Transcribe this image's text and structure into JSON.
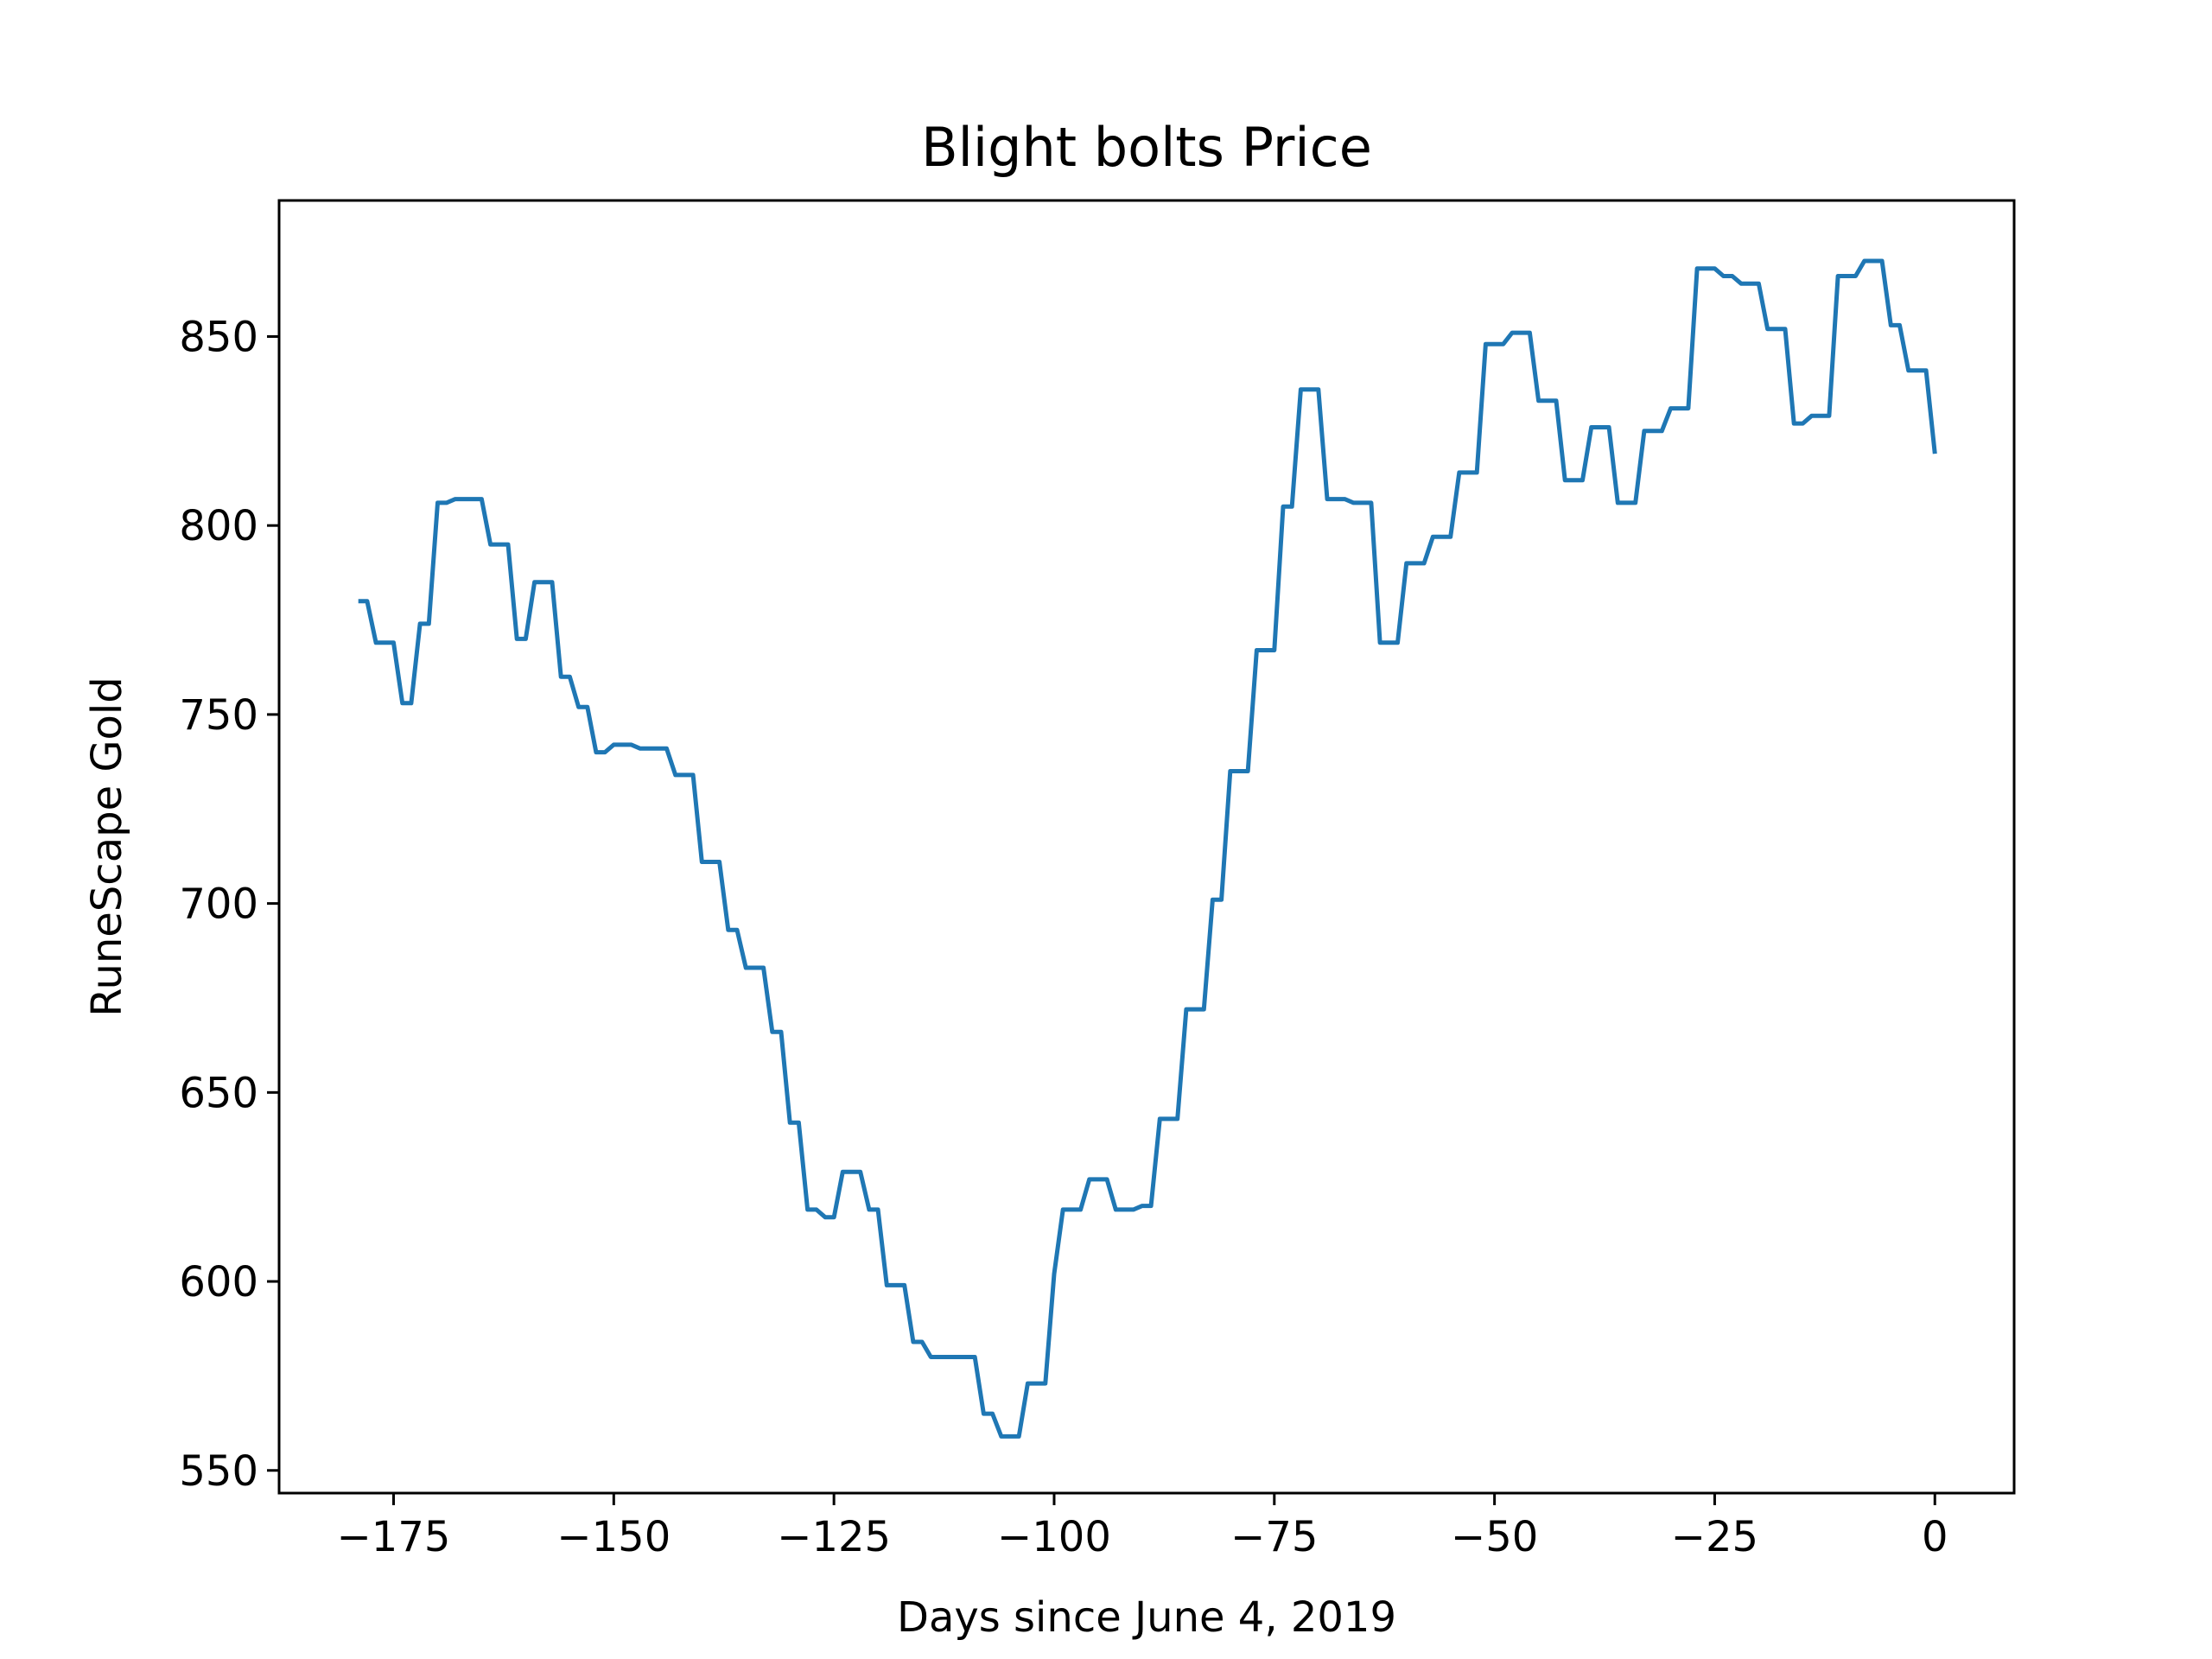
{
  "chart_data": {
    "type": "line",
    "title": "Blight bolts Price",
    "xlabel": "Days since June 4, 2019",
    "ylabel": "RuneScape Gold",
    "xlim": [
      -188,
      9
    ],
    "ylim": [
      544,
      886
    ],
    "xticks": [
      -175,
      -150,
      -125,
      -100,
      -75,
      -50,
      -25,
      0
    ],
    "xtick_labels": [
      "−175",
      "−150",
      "−125",
      "−100",
      "−75",
      "−50",
      "−25",
      "0"
    ],
    "yticks": [
      550,
      600,
      650,
      700,
      750,
      800,
      850
    ],
    "ytick_labels": [
      "550",
      "600",
      "650",
      "700",
      "750",
      "800",
      "850"
    ],
    "grid": false,
    "legend": "none",
    "series": [
      {
        "name": "",
        "color": "#1f77b4",
        "x": [
          -179,
          -178,
          -177,
          -176,
          -175,
          -174,
          -173,
          -172,
          -171,
          -170,
          -169,
          -168,
          -167,
          -166,
          -165,
          -164,
          -163,
          -162,
          -161,
          -160,
          -159,
          -158,
          -157,
          -156,
          -155,
          -154,
          -153,
          -152,
          -151,
          -150,
          -149,
          -148,
          -147,
          -146,
          -145,
          -144,
          -143,
          -142,
          -141,
          -140,
          -139,
          -138,
          -137,
          -136,
          -135,
          -134,
          -133,
          -132,
          -131,
          -130,
          -129,
          -128,
          -127,
          -126,
          -125,
          -124,
          -123,
          -122,
          -121,
          -120,
          -119,
          -118,
          -117,
          -116,
          -115,
          -114,
          -113,
          -112,
          -111,
          -110,
          -109,
          -108,
          -107,
          -106,
          -105,
          -104,
          -103,
          -102,
          -101,
          -100,
          -99,
          -98,
          -97,
          -96,
          -95,
          -94,
          -93,
          -92,
          -91,
          -90,
          -89,
          -88,
          -87,
          -86,
          -85,
          -84,
          -83,
          -82,
          -81,
          -80,
          -79,
          -78,
          -77,
          -76,
          -75,
          -74,
          -73,
          -72,
          -71,
          -70,
          -69,
          -68,
          -67,
          -66,
          -65,
          -64,
          -63,
          -62,
          -61,
          -60,
          -59,
          -58,
          -57,
          -56,
          -55,
          -54,
          -53,
          -52,
          -51,
          -50,
          -49,
          -48,
          -47,
          -46,
          -45,
          -44,
          -43,
          -42,
          -41,
          -40,
          -39,
          -38,
          -37,
          -36,
          -35,
          -34,
          -33,
          -32,
          -31,
          -30,
          -29,
          -28,
          -27,
          -26,
          -25,
          -24,
          -23,
          -22,
          -21,
          -20,
          -19,
          -18,
          -17,
          -16,
          -15,
          -14,
          -13,
          -12,
          -11,
          -10,
          -9,
          -8,
          -7,
          -6,
          -5,
          -4,
          -3,
          -2,
          -1,
          0
        ],
        "y": [
          780,
          780,
          769,
          769,
          769,
          753,
          753,
          774,
          774,
          806,
          806,
          807,
          807,
          807,
          807,
          795,
          795,
          795,
          770,
          770,
          785,
          785,
          785,
          760,
          760,
          752,
          752,
          740,
          740,
          742,
          742,
          742,
          741,
          741,
          741,
          741,
          734,
          734,
          734,
          711,
          711,
          711,
          693,
          693,
          683,
          683,
          683,
          666,
          666,
          642,
          642,
          619,
          619,
          617,
          617,
          629,
          629,
          629,
          619,
          619,
          599,
          599,
          599,
          584,
          584,
          580,
          580,
          580,
          580,
          580,
          580,
          565,
          565,
          559,
          559,
          559,
          573,
          573,
          573,
          602,
          619,
          619,
          619,
          627,
          627,
          627,
          619,
          619,
          619,
          620,
          620,
          643,
          643,
          643,
          672,
          672,
          672,
          701,
          701,
          735,
          735,
          735,
          767,
          767,
          767,
          805,
          805,
          836,
          836,
          836,
          807,
          807,
          807,
          806,
          806,
          806,
          769,
          769,
          769,
          790,
          790,
          790,
          797,
          797,
          797,
          814,
          814,
          814,
          848,
          848,
          848,
          851,
          851,
          851,
          833,
          833,
          833,
          812,
          812,
          812,
          826,
          826,
          826,
          806,
          806,
          806,
          825,
          825,
          825,
          831,
          831,
          831,
          868,
          868,
          868,
          866,
          866,
          864,
          864,
          864,
          852,
          852,
          852,
          827,
          827,
          829,
          829,
          829,
          866,
          866,
          866,
          870,
          870,
          870,
          853,
          853,
          841,
          841,
          841,
          819
        ]
      }
    ]
  }
}
